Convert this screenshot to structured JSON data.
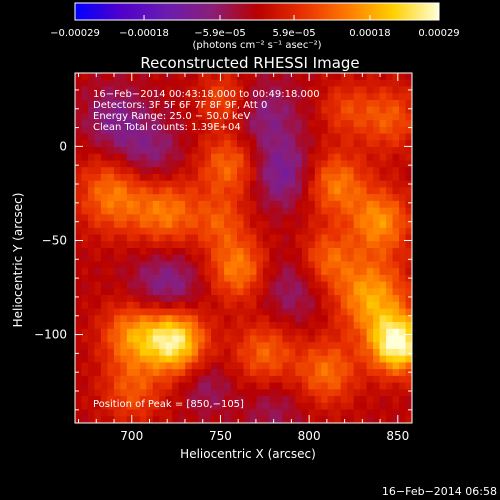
{
  "colorbar": {
    "tick_labels": [
      "−0.00029",
      "−0.00018",
      "−5.9e−05",
      "5.9e−05",
      "0.00018",
      "0.00029"
    ],
    "tick_values": [
      -0.00029,
      -0.00018,
      -5.9e-05,
      5.9e-05,
      0.00018,
      0.00029
    ],
    "range": [
      -0.00029,
      0.00029
    ],
    "units_text": "(photons cm⁻² s⁻¹ asec⁻²)",
    "colormap": [
      "#0000ff",
      "#5000cc",
      "#6a1bb0",
      "#8a1e7a",
      "#b80000",
      "#e83000",
      "#ff7a00",
      "#ffd000",
      "#ffffd8"
    ]
  },
  "chart_data": {
    "type": "heatmap",
    "title": "Reconstructed RHESSI Image",
    "xlabel": "Heliocentric X (arcsec)",
    "ylabel": "Heliocentric Y (arcsec)",
    "xlim": [
      668,
      858
    ],
    "ylim": [
      -147,
      39
    ],
    "xticks": [
      700,
      750,
      800,
      850
    ],
    "yticks": [
      0,
      -50,
      -100
    ],
    "info_lines": [
      "16−Feb−2014 00:43:18.000 to 00:49:18.000",
      "Detectors: 3F 5F 6F 7F 8F 9F, Att 0",
      "Energy Range: 25.0 − 50.0 keV",
      "Clean     Total counts: 1.39E+04"
    ],
    "peak_label": "Position of Peak = [850,−105]",
    "peak": [
      850,
      -105
    ],
    "blobs": [
      {
        "x": 724,
        "y": -103,
        "a": 0.00027,
        "s": 12
      },
      {
        "x": 850,
        "y": -105,
        "a": 0.00029,
        "s": 11
      },
      {
        "x": 835,
        "y": -80,
        "a": 0.00018,
        "s": 14
      },
      {
        "x": 700,
        "y": -100,
        "a": 0.00015,
        "s": 12
      },
      {
        "x": 690,
        "y": -25,
        "a": 0.00015,
        "s": 14
      },
      {
        "x": 720,
        "y": -35,
        "a": 0.00014,
        "s": 13
      },
      {
        "x": 755,
        "y": -10,
        "a": 0.00013,
        "s": 12
      },
      {
        "x": 750,
        "y": -40,
        "a": 9e-05,
        "s": 10
      },
      {
        "x": 760,
        "y": -65,
        "a": 0.00015,
        "s": 12
      },
      {
        "x": 815,
        "y": -20,
        "a": 0.00014,
        "s": 12
      },
      {
        "x": 840,
        "y": -40,
        "a": 0.00016,
        "s": 12
      },
      {
        "x": 810,
        "y": -60,
        "a": 0.00012,
        "s": 11
      },
      {
        "x": 775,
        "y": -110,
        "a": 0.00012,
        "s": 12
      },
      {
        "x": 810,
        "y": -120,
        "a": 0.00013,
        "s": 12
      },
      {
        "x": 700,
        "y": -130,
        "a": 0.0001,
        "s": 12
      },
      {
        "x": 845,
        "y": 15,
        "a": 0.00011,
        "s": 12
      },
      {
        "x": 752,
        "y": 25,
        "a": 0.0001,
        "s": 10
      },
      {
        "x": 820,
        "y": 20,
        "a": 8e-05,
        "s": 10
      },
      {
        "x": 708,
        "y": -5,
        "a": -9e-05,
        "s": 14
      },
      {
        "x": 690,
        "y": 15,
        "a": -8e-05,
        "s": 12
      },
      {
        "x": 785,
        "y": -15,
        "a": -0.00011,
        "s": 12
      },
      {
        "x": 775,
        "y": 15,
        "a": -8e-05,
        "s": 14
      },
      {
        "x": 720,
        "y": -75,
        "a": -0.0001,
        "s": 14
      },
      {
        "x": 790,
        "y": -75,
        "a": -7e-05,
        "s": 14
      },
      {
        "x": 780,
        "y": -140,
        "a": -5e-05,
        "s": 12
      },
      {
        "x": 742,
        "y": -128,
        "a": -6e-05,
        "s": 10
      }
    ]
  },
  "footer": {
    "timestamp": "16−Feb−2014 06:58"
  }
}
